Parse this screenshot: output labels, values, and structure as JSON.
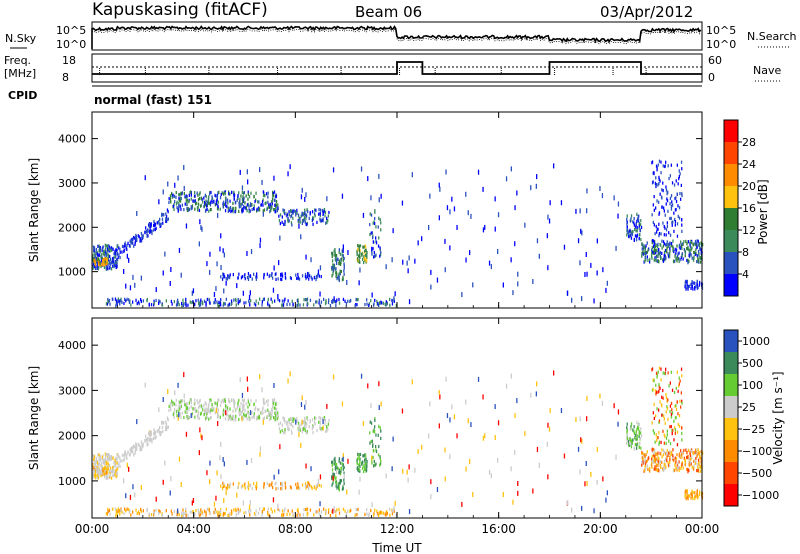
{
  "header": {
    "station": "Kapuskasing (fitACF)",
    "beam": "Beam 06",
    "date": "03/Apr/2012"
  },
  "noise_panel": {
    "left_label": "N.Sky",
    "right_label": "N.Search",
    "left_ticks": [
      "10^5",
      "10^0"
    ],
    "right_ticks": [
      "10^5",
      "10^0"
    ]
  },
  "freq_panel": {
    "label_line1": "Freq.",
    "label_line2": "[MHz]",
    "right_label": "Nave",
    "left_ticks": [
      "18",
      "8"
    ],
    "right_ticks": [
      "60",
      "0"
    ]
  },
  "cpid": {
    "label": "CPID",
    "value": "normal (fast) 151"
  },
  "x_axis": {
    "label": "Time UT",
    "ticks": [
      "00:00",
      "04:00",
      "08:00",
      "12:00",
      "16:00",
      "20:00",
      "00:00"
    ]
  },
  "colors": {
    "power": [
      "#0000ff",
      "#2a52be",
      "#3b8a5a",
      "#2e7d32",
      "#ffc20e",
      "#ff8c00",
      "#ff4500",
      "#ff0000"
    ],
    "velocity": [
      "#ff0000",
      "#ff4500",
      "#ff8c00",
      "#ffc20e",
      "#cccccc",
      "#66cc33",
      "#3b8a5a",
      "#2a52be"
    ]
  },
  "chart_data": [
    {
      "type": "heatmap",
      "title": "",
      "xlabel": "Time UT",
      "ylabel": "Slant Range [km]",
      "xlim": [
        0,
        24
      ],
      "ylim": [
        180,
        4600
      ],
      "y_ticks": [
        "1000",
        "2000",
        "3000",
        "4000"
      ],
      "colorbar_label": "Power [dB]",
      "colorbar_ticks": [
        "4",
        "8",
        "12",
        "16",
        "20",
        "24",
        "28"
      ],
      "range": [
        0,
        32
      ]
    },
    {
      "type": "heatmap",
      "title": "",
      "xlabel": "Time UT",
      "ylabel": "Slant Range [km]",
      "xlim": [
        0,
        24
      ],
      "ylim": [
        180,
        4600
      ],
      "y_ticks": [
        "1000",
        "2000",
        "3000",
        "4000"
      ],
      "colorbar_label": "Velocity [m s⁻¹]",
      "colorbar_ticks": [
        "1000",
        "500",
        "100",
        "25",
        "−25",
        "−100",
        "−500",
        "−1000"
      ]
    }
  ]
}
